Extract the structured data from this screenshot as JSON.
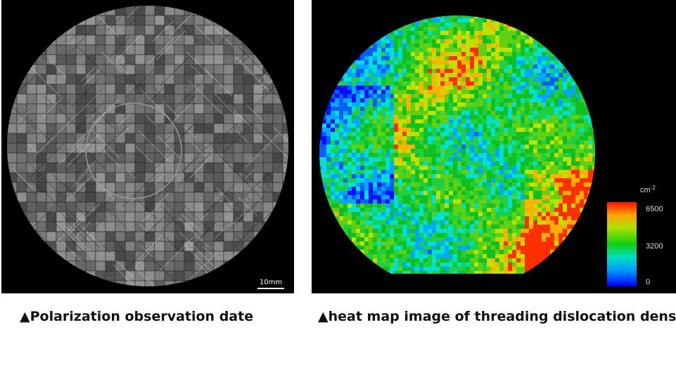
{
  "left_panel": {
    "scale_bar_label": "10mm",
    "caption": "▲Polarization observation date"
  },
  "right_panel": {
    "colorbar": {
      "unit": "cm",
      "unit_exponent": "-2",
      "ticks": [
        6500,
        3200,
        0
      ]
    },
    "caption": "▲heat map image of threading dislocation density"
  }
}
